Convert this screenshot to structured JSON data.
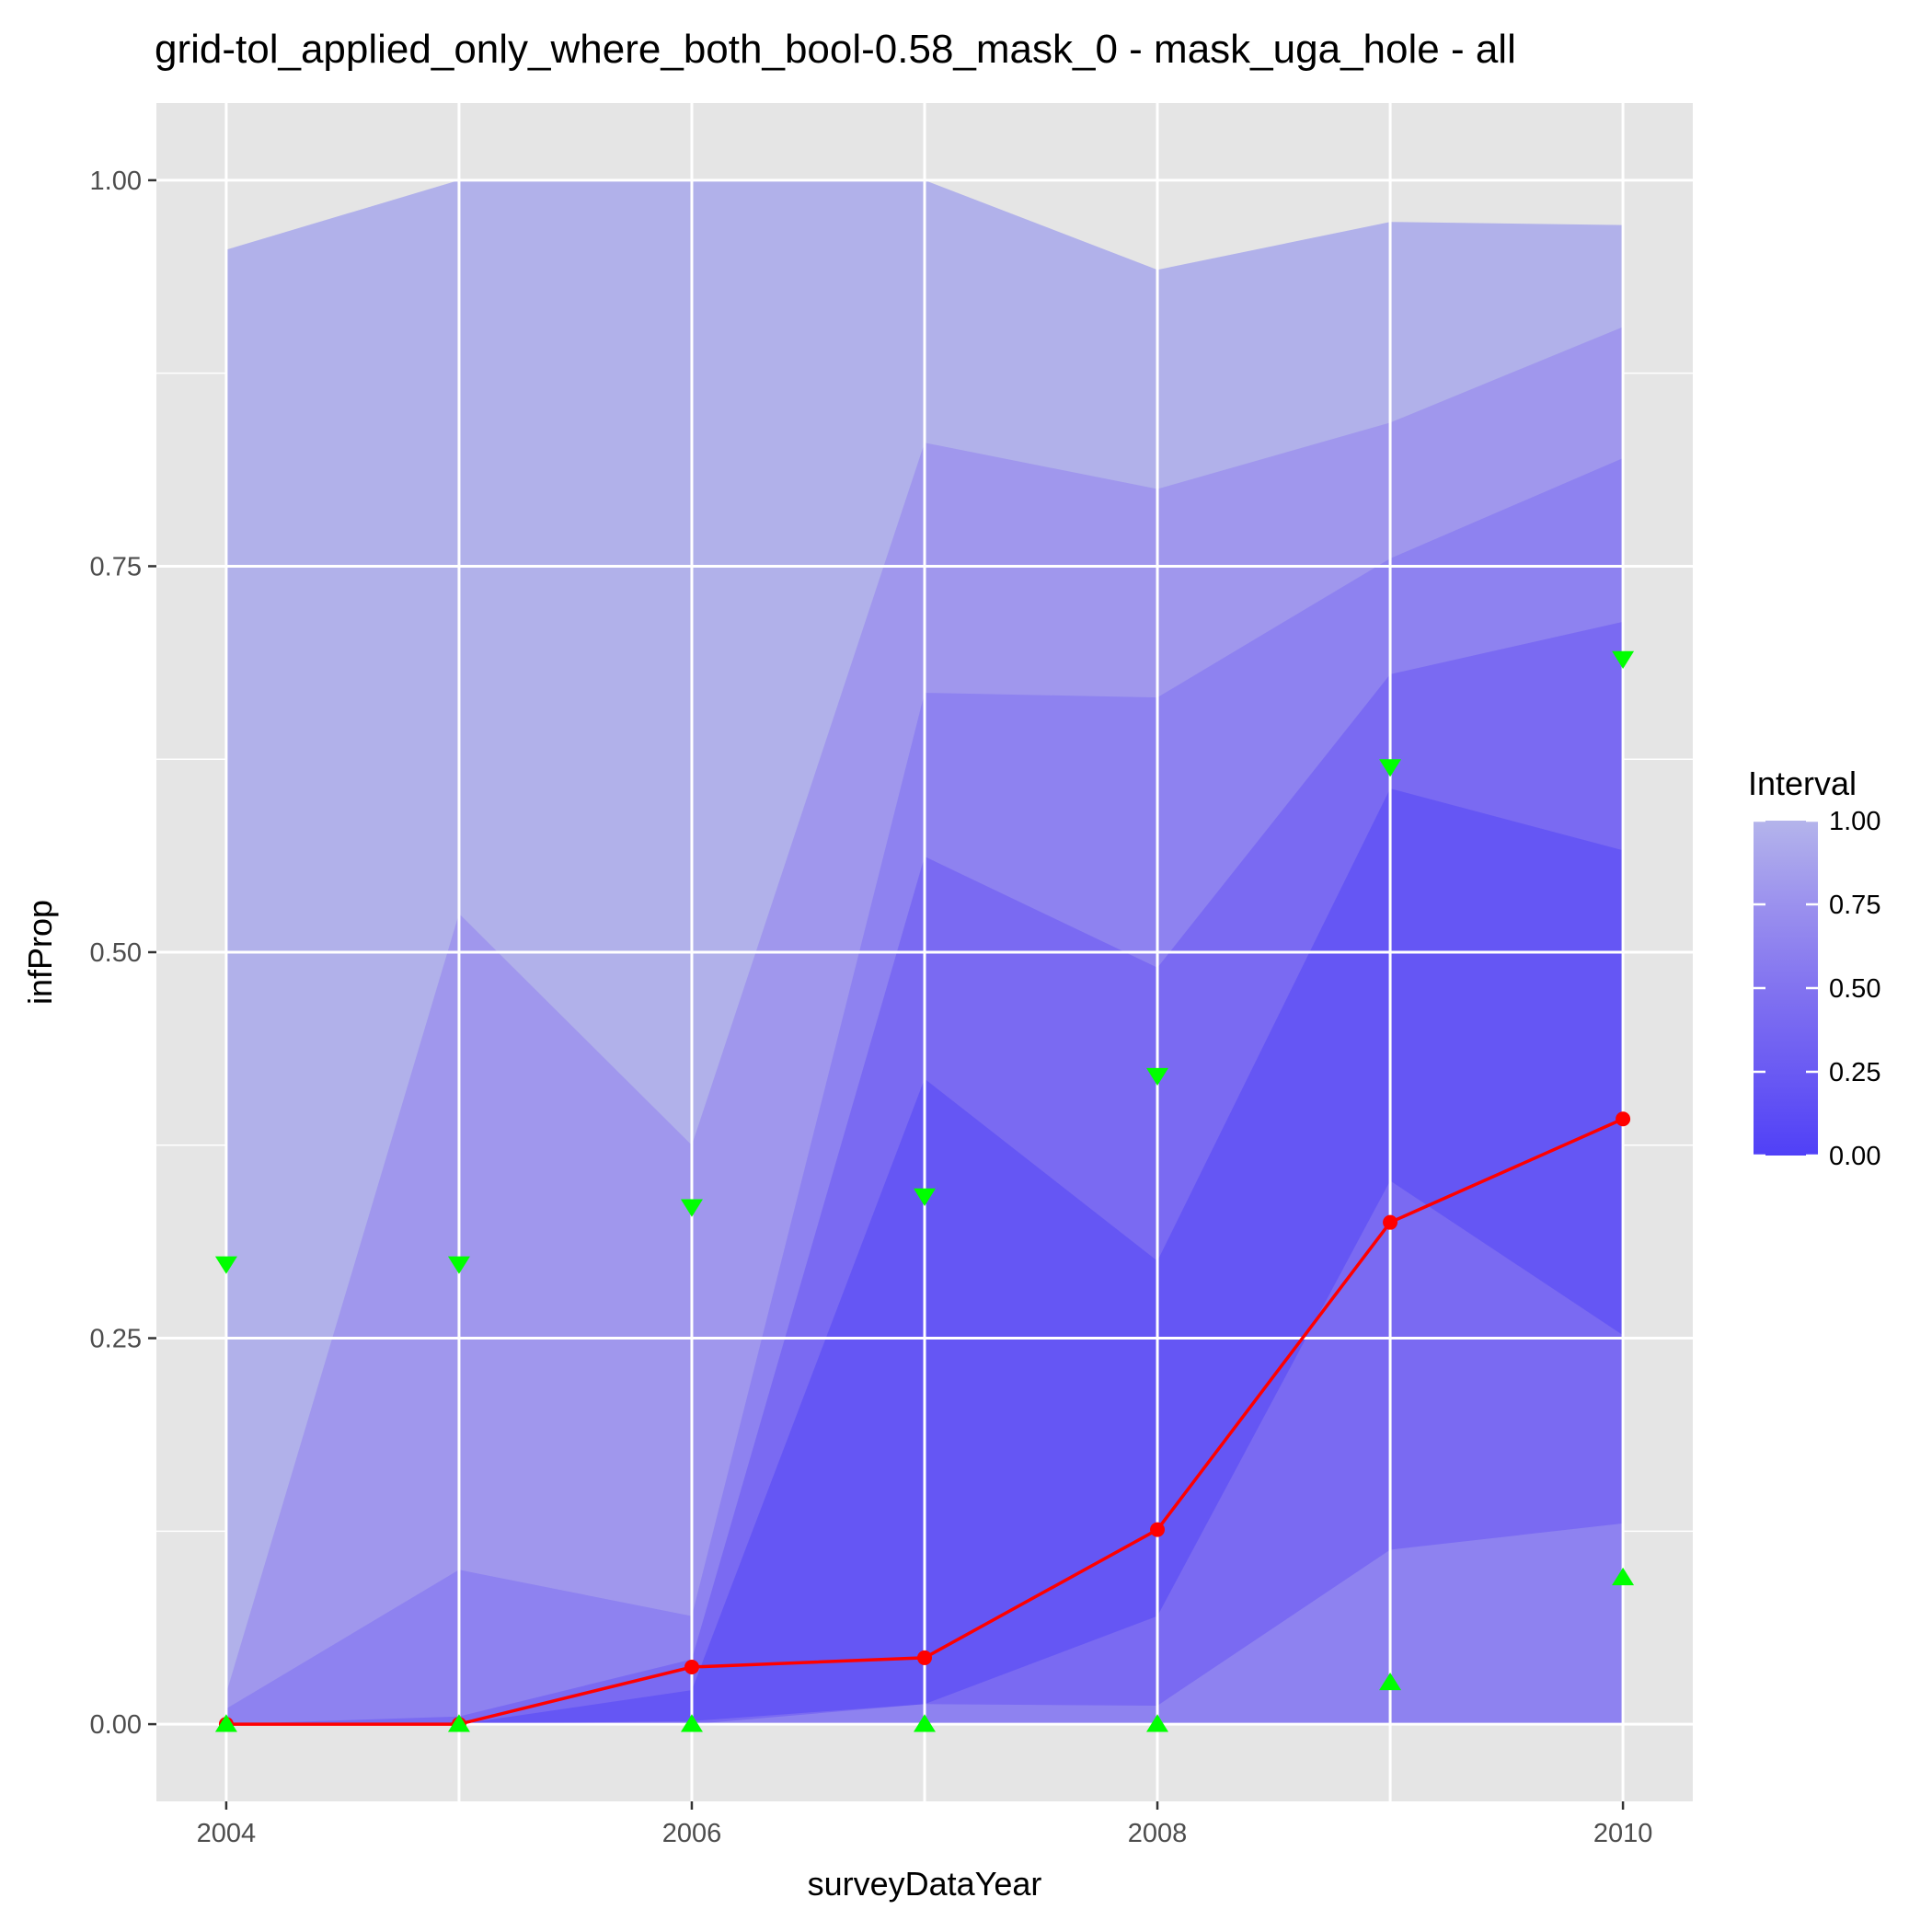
{
  "chart_data": {
    "type": "area",
    "title": "grid-tol_applied_only_where_both_bool-0.58_mask_0 - mask_uga_hole - all",
    "xlabel": "surveyDataYear",
    "ylabel": "infProp",
    "x": [
      2004,
      2005,
      2006,
      2007,
      2008,
      2009,
      2010
    ],
    "xlim": [
      2003.7,
      2010.3
    ],
    "ylim": [
      -0.05,
      1.05
    ],
    "x_ticks": [
      2004,
      2006,
      2008,
      2010
    ],
    "y_ticks": [
      0,
      0.25,
      0.5,
      0.75,
      1.0
    ],
    "x_tick_labels": [
      "2004",
      "2006",
      "2008",
      "2010"
    ],
    "y_tick_labels": [
      "0.00",
      "0.25",
      "0.50",
      "0.75",
      "1.00"
    ],
    "grid": true,
    "background": "#e5e5e5",
    "bands": [
      {
        "interval": 1.0,
        "color": "#b1b1ea",
        "lower": [
          0,
          0,
          0,
          0,
          0,
          0,
          0
        ],
        "upper": [
          0.955,
          1.0,
          1.0,
          1.0,
          0.942,
          0.973,
          0.971
        ]
      },
      {
        "interval": 0.75,
        "color": "#a097ed",
        "lower": [
          0,
          0,
          0,
          0,
          0,
          0,
          0
        ],
        "upper": [
          0.02,
          0.525,
          0.375,
          0.83,
          0.8,
          0.843,
          0.905
        ]
      },
      {
        "interval": 0.5,
        "color": "#8e82f0",
        "lower": [
          0,
          0,
          0,
          0,
          0,
          0,
          0
        ],
        "upper": [
          0.01,
          0.1,
          0.07,
          0.668,
          0.665,
          0.755,
          0.82
        ]
      },
      {
        "interval": 0.25,
        "color": "#7a6af2",
        "lower": [
          0,
          0,
          0,
          0.013,
          0.012,
          0.113,
          0.13
        ],
        "upper": [
          0,
          0.005,
          0.042,
          0.562,
          0.49,
          0.68,
          0.714
        ]
      },
      {
        "interval": 0.05,
        "color": "#6556f4",
        "lower": [
          0,
          0,
          0.002,
          0.013,
          0.07,
          0.352,
          0.252
        ],
        "upper": [
          0,
          0,
          0.022,
          0.418,
          0.3,
          0.606,
          0.566
        ]
      }
    ],
    "series": [
      {
        "values": [
          0,
          0,
          0.037,
          0.043,
          0.126,
          0.325,
          0.392
        ],
        "color": "#ff0000",
        "marker": "circle"
      },
      {
        "values": [
          0.298,
          0.298,
          0.335,
          0.342,
          0.42,
          0.62,
          0.69
        ],
        "color": "#00ff00",
        "marker": "triangle-down"
      },
      {
        "values": [
          0,
          0,
          0,
          0,
          0,
          0.027,
          0.095
        ],
        "color": "#00ff00",
        "marker": "triangle-up"
      }
    ],
    "legend": {
      "title": "Interval",
      "placement": "right",
      "labels": [
        "1.00",
        "0.75",
        "0.50",
        "0.25",
        "0.00"
      ],
      "values": [
        1.0,
        0.75,
        0.5,
        0.25,
        0.0
      ],
      "colors": [
        "#b4b4eb",
        "#9b91ee",
        "#8273f0",
        "#6a5af3",
        "#5040f7"
      ]
    }
  }
}
